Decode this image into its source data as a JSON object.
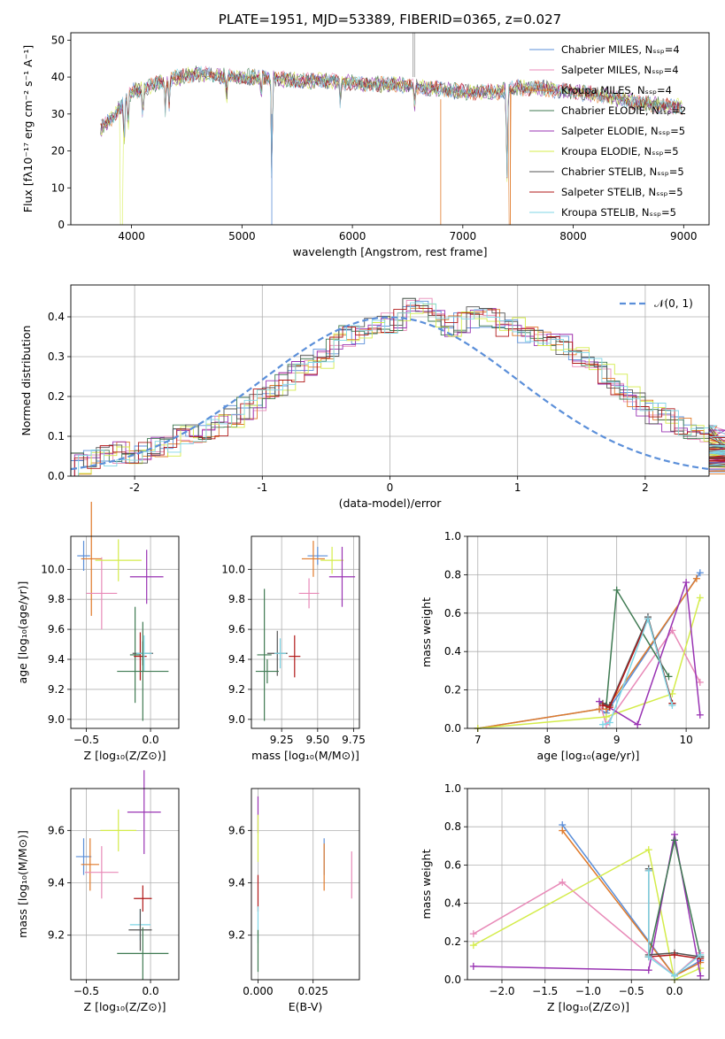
{
  "colors": {
    "chabrier_miles": "#5b8fd9",
    "salpeter_miles": "#e88ab8",
    "kroupa_miles": "#e07a2a",
    "chabrier_elodie": "#3f7a52",
    "salpeter_elodie": "#9933b3",
    "kroupa_elodie": "#d4ec4a",
    "chabrier_stelib": "#555555",
    "salpeter_stelib": "#b01818",
    "kroupa_stelib": "#7fd6e6",
    "gaussian": "#5b8fd9"
  },
  "chart_data": [
    {
      "id": "spectrum",
      "type": "line",
      "title": "PLATE=1951, MJD=53389, FIBERID=0365, z=0.027",
      "xlabel": "wavelength [Angstrom, rest frame]",
      "ylabel": "Flux [fλ10⁻¹⁷ erg cm⁻² s⁻¹ A⁻¹]",
      "xlim": [
        3450,
        9230
      ],
      "ylim": [
        0,
        52
      ],
      "xticks": [
        4000,
        5000,
        6000,
        7000,
        8000,
        9000
      ],
      "yticks": [
        0,
        10,
        20,
        30,
        40,
        50
      ],
      "legend_position": "top-right",
      "legend": [
        {
          "label": "Chabrier MILES, Nₛₛₚ=4",
          "color_key": "chabrier_miles"
        },
        {
          "label": "Salpeter MILES, Nₛₛₚ=4",
          "color_key": "salpeter_miles"
        },
        {
          "label": "Kroupa MILES, Nₛₛₚ=4",
          "color_key": "kroupa_miles"
        },
        {
          "label": "Chabrier ELODIE, Nₛₛₚ=2",
          "color_key": "chabrier_elodie"
        },
        {
          "label": "Salpeter ELODIE, Nₛₛₚ=5",
          "color_key": "salpeter_elodie"
        },
        {
          "label": "Kroupa ELODIE, Nₛₛₚ=5",
          "color_key": "kroupa_elodie"
        },
        {
          "label": "Chabrier STELIB, Nₛₛₚ=5",
          "color_key": "chabrier_stelib"
        },
        {
          "label": "Salpeter STELIB, Nₛₛₚ=5",
          "color_key": "salpeter_stelib"
        },
        {
          "label": "Kroupa STELIB, Nₛₛₚ=5",
          "color_key": "kroupa_stelib"
        }
      ],
      "continuum": [
        [
          3720,
          26
        ],
        [
          3850,
          30
        ],
        [
          4000,
          36
        ],
        [
          4300,
          39
        ],
        [
          4600,
          41
        ],
        [
          4900,
          40
        ],
        [
          5200,
          40
        ],
        [
          5500,
          39
        ],
        [
          5800,
          39
        ],
        [
          6100,
          38
        ],
        [
          6400,
          38
        ],
        [
          6700,
          37
        ],
        [
          7000,
          36
        ],
        [
          7300,
          36
        ],
        [
          7500,
          37
        ],
        [
          7700,
          37
        ],
        [
          8000,
          36
        ],
        [
          8300,
          35
        ],
        [
          8600,
          33
        ],
        [
          8900,
          32
        ],
        [
          8990,
          32
        ]
      ],
      "dips": [
        [
          3934,
          12
        ],
        [
          3969,
          10
        ],
        [
          4102,
          9
        ],
        [
          4305,
          8
        ],
        [
          4341,
          7
        ],
        [
          4861,
          6
        ],
        [
          5175,
          5
        ],
        [
          5270,
          30
        ],
        [
          5890,
          6
        ],
        [
          6563,
          5
        ],
        [
          7400,
          25
        ]
      ]
    },
    {
      "id": "residuals",
      "type": "histogram",
      "xlabel": "(data-model)/error",
      "ylabel": "Normed distribution",
      "xlim": [
        -2.5,
        2.5
      ],
      "ylim": [
        0,
        0.48
      ],
      "xticks": [
        -2,
        -1,
        0,
        1,
        2
      ],
      "yticks": [
        0.0,
        0.1,
        0.2,
        0.3,
        0.4
      ],
      "legend_position": "top-right",
      "legend_label": "𝒩(0, 1)",
      "bin_width": 0.1,
      "x_start": -2.5,
      "base_values": [
        0.03,
        0.04,
        0.05,
        0.06,
        0.05,
        0.06,
        0.07,
        0.08,
        0.1,
        0.11,
        0.12,
        0.13,
        0.15,
        0.17,
        0.19,
        0.21,
        0.23,
        0.26,
        0.28,
        0.3,
        0.33,
        0.35,
        0.36,
        0.37,
        0.38,
        0.39,
        0.42,
        0.43,
        0.4,
        0.38,
        0.39,
        0.4,
        0.4,
        0.38,
        0.37,
        0.36,
        0.35,
        0.34,
        0.33,
        0.3,
        0.28,
        0.26,
        0.23,
        0.2,
        0.18,
        0.16,
        0.14,
        0.13,
        0.12,
        0.11,
        0.1,
        0.09,
        0.08,
        0.07,
        0.06,
        0.05,
        0.05,
        0.04,
        0.04,
        0.03
      ]
    },
    {
      "id": "z-age",
      "type": "errorbar",
      "xlabel": "Z [log₁₀(Z/Z⊙)]",
      "ylabel": "age  [log₁₀(age/yr)]",
      "xlim": [
        -0.62,
        0.22
      ],
      "ylim": [
        8.94,
        10.22
      ],
      "xticks": [
        -0.5,
        0.0
      ],
      "xticklabels": [
        "−0.5",
        "0.0"
      ],
      "yticks": [
        9.0,
        9.2,
        9.4,
        9.6,
        9.8,
        10.0
      ],
      "points": [
        {
          "color_key": "chabrier_miles",
          "x": -0.52,
          "xerr": 0.05,
          "y": 10.09,
          "yerr": 0.1
        },
        {
          "color_key": "kroupa_miles",
          "x": -0.46,
          "xerr": 0.08,
          "y": 10.07,
          "yerr": 0.38
        },
        {
          "color_key": "salpeter_miles",
          "x": -0.38,
          "xerr": 0.12,
          "y": 9.84,
          "yerr": 0.24
        },
        {
          "color_key": "kroupa_elodie",
          "x": -0.25,
          "xerr": 0.18,
          "y": 10.06,
          "yerr": 0.14
        },
        {
          "color_key": "salpeter_elodie",
          "x": -0.03,
          "xerr": 0.13,
          "y": 9.95,
          "yerr": 0.18
        },
        {
          "color_key": "chabrier_elodie",
          "x": -0.12,
          "xerr": 0.04,
          "y": 9.43,
          "yerr": 0.32
        },
        {
          "color_key": "chabrier_stelib",
          "x": -0.06,
          "xerr": 0.08,
          "y": 9.44,
          "yerr": 0.08
        },
        {
          "color_key": "salpeter_stelib",
          "x": -0.08,
          "xerr": 0.05,
          "y": 9.42,
          "yerr": 0.16
        },
        {
          "color_key": "kroupa_stelib",
          "x": -0.05,
          "xerr": 0.06,
          "y": 9.44,
          "yerr": 0.12
        },
        {
          "color_key": "chabrier_elodie",
          "x": -0.06,
          "xerr": 0.2,
          "y": 9.32,
          "yerr": 0.33
        }
      ]
    },
    {
      "id": "mass-age",
      "type": "errorbar",
      "xlabel": "mass [log₁₀(M/M⊙)]",
      "ylabel": "",
      "xlim": [
        9.04,
        9.79
      ],
      "ylim": [
        8.94,
        10.22
      ],
      "xticks": [
        9.25,
        9.5,
        9.75
      ],
      "xticklabels": [
        "9.25",
        "9.50",
        "9.75"
      ],
      "yticks": [
        9.0,
        9.2,
        9.4,
        9.6,
        9.8,
        10.0
      ],
      "points": [
        {
          "color_key": "chabrier_miles",
          "x": 9.5,
          "xerr": 0.07,
          "y": 10.09,
          "yerr": 0.06
        },
        {
          "color_key": "kroupa_miles",
          "x": 9.47,
          "xerr": 0.08,
          "y": 10.07,
          "yerr": 0.12
        },
        {
          "color_key": "kroupa_elodie",
          "x": 9.6,
          "xerr": 0.08,
          "y": 10.06,
          "yerr": 0.09
        },
        {
          "color_key": "salpeter_elodie",
          "x": 9.67,
          "xerr": 0.09,
          "y": 9.95,
          "yerr": 0.2
        },
        {
          "color_key": "salpeter_miles",
          "x": 9.44,
          "xerr": 0.07,
          "y": 9.84,
          "yerr": 0.1
        },
        {
          "color_key": "chabrier_elodie",
          "x": 9.13,
          "xerr": 0.05,
          "y": 9.43,
          "yerr": 0.44
        },
        {
          "color_key": "chabrier_stelib",
          "x": 9.22,
          "xerr": 0.07,
          "y": 9.44,
          "yerr": 0.15
        },
        {
          "color_key": "salpeter_stelib",
          "x": 9.34,
          "xerr": 0.04,
          "y": 9.42,
          "yerr": 0.14
        },
        {
          "color_key": "kroupa_stelib",
          "x": 9.24,
          "xerr": 0.04,
          "y": 9.44,
          "yerr": 0.1
        },
        {
          "color_key": "chabrier_elodie",
          "x": 9.15,
          "xerr": 0.08,
          "y": 9.32,
          "yerr": 0.08
        }
      ]
    },
    {
      "id": "age-weight",
      "type": "line",
      "xlabel": "age  [log₁₀(age/yr)]",
      "ylabel": "mass weight",
      "xlim": [
        6.85,
        10.33
      ],
      "ylim": [
        0,
        1
      ],
      "xticks": [
        7,
        8,
        9,
        10
      ],
      "yticks": [
        0.0,
        0.2,
        0.4,
        0.6,
        0.8,
        1.0
      ],
      "series": [
        {
          "color_key": "chabrier_miles",
          "x": [
            7.0,
            8.75,
            8.85,
            10.2
          ],
          "y": [
            0.0,
            0.1,
            0.08,
            0.81
          ]
        },
        {
          "color_key": "kroupa_miles",
          "x": [
            7.0,
            8.75,
            8.85,
            10.15
          ],
          "y": [
            0.0,
            0.1,
            0.1,
            0.78
          ]
        },
        {
          "color_key": "salpeter_miles",
          "x": [
            8.75,
            8.85,
            9.8,
            10.2
          ],
          "y": [
            0.14,
            0.02,
            0.51,
            0.24
          ]
        },
        {
          "color_key": "kroupa_elodie",
          "x": [
            7.0,
            8.85,
            9.8,
            10.2
          ],
          "y": [
            0.0,
            0.06,
            0.18,
            0.68
          ]
        },
        {
          "color_key": "salpeter_elodie",
          "x": [
            8.75,
            9.3,
            10.0,
            10.2
          ],
          "y": [
            0.14,
            0.02,
            0.76,
            0.07
          ]
        },
        {
          "color_key": "chabrier_elodie",
          "x": [
            8.85,
            9.0,
            9.75
          ],
          "y": [
            0.12,
            0.72,
            0.27
          ]
        },
        {
          "color_key": "chabrier_stelib",
          "x": [
            8.8,
            8.9,
            9.45,
            9.8
          ],
          "y": [
            0.13,
            0.12,
            0.58,
            0.13
          ]
        },
        {
          "color_key": "salpeter_stelib",
          "x": [
            8.8,
            8.9,
            9.45,
            9.8
          ],
          "y": [
            0.12,
            0.11,
            0.57,
            0.13
          ]
        },
        {
          "color_key": "kroupa_stelib",
          "x": [
            8.8,
            8.9,
            9.45,
            9.8
          ],
          "y": [
            0.02,
            0.03,
            0.57,
            0.12
          ]
        }
      ]
    },
    {
      "id": "z-mass",
      "type": "errorbar",
      "xlabel": "Z [log₁₀(Z/Z⊙)]",
      "ylabel": "mass [log₁₀(M/M⊙)]",
      "xlim": [
        -0.62,
        0.22
      ],
      "ylim": [
        9.03,
        9.76
      ],
      "xticks": [
        -0.5,
        0.0
      ],
      "xticklabels": [
        "−0.5",
        "0.0"
      ],
      "yticks": [
        9.2,
        9.4,
        9.6
      ],
      "points": [
        {
          "color_key": "chabrier_miles",
          "x": -0.52,
          "xerr": 0.06,
          "y": 9.5,
          "yerr": 0.07
        },
        {
          "color_key": "kroupa_miles",
          "x": -0.47,
          "xerr": 0.07,
          "y": 9.47,
          "yerr": 0.1
        },
        {
          "color_key": "salpeter_miles",
          "x": -0.38,
          "xerr": 0.13,
          "y": 9.44,
          "yerr": 0.1
        },
        {
          "color_key": "kroupa_elodie",
          "x": -0.25,
          "xerr": 0.14,
          "y": 9.6,
          "yerr": 0.08
        },
        {
          "color_key": "salpeter_elodie",
          "x": -0.05,
          "xerr": 0.13,
          "y": 9.67,
          "yerr": 0.16
        },
        {
          "color_key": "salpeter_stelib",
          "x": -0.06,
          "xerr": 0.07,
          "y": 9.34,
          "yerr": 0.05
        },
        {
          "color_key": "kroupa_stelib",
          "x": -0.08,
          "xerr": 0.08,
          "y": 9.24,
          "yerr": 0.06
        },
        {
          "color_key": "chabrier_stelib",
          "x": -0.08,
          "xerr": 0.09,
          "y": 9.22,
          "yerr": 0.08
        },
        {
          "color_key": "chabrier_elodie",
          "x": -0.06,
          "xerr": 0.2,
          "y": 9.13,
          "yerr": 0.1
        }
      ]
    },
    {
      "id": "ebv-mass",
      "type": "errorbar",
      "xlabel": "E(B-V)",
      "ylabel": "",
      "xlim": [
        -0.003,
        0.046
      ],
      "ylim": [
        9.03,
        9.76
      ],
      "xticks": [
        0.0,
        0.025
      ],
      "xticklabels": [
        "0.000",
        "0.025"
      ],
      "yticks": [
        9.2,
        9.4,
        9.6
      ],
      "points": [
        {
          "color_key": "chabrier_miles",
          "x": 0.03,
          "xerr": 0,
          "y": 9.5,
          "yerr": 0.07
        },
        {
          "color_key": "kroupa_miles",
          "x": 0.03,
          "xerr": 0,
          "y": 9.46,
          "yerr": 0.09
        },
        {
          "color_key": "salpeter_miles",
          "x": 0.0425,
          "xerr": 0,
          "y": 9.43,
          "yerr": 0.09
        },
        {
          "color_key": "salpeter_elodie",
          "x": 0.0,
          "xerr": 0,
          "y": 9.66,
          "yerr": 0.07
        },
        {
          "color_key": "kroupa_elodie",
          "x": 0.0,
          "xerr": 0,
          "y": 9.57,
          "yerr": 0.09
        },
        {
          "color_key": "salpeter_stelib",
          "x": 0.0,
          "xerr": 0,
          "y": 9.36,
          "yerr": 0.07
        },
        {
          "color_key": "kroupa_stelib",
          "x": 0.0,
          "xerr": 0,
          "y": 9.24,
          "yerr": 0.07
        },
        {
          "color_key": "chabrier_elodie",
          "x": 0.0,
          "xerr": 0,
          "y": 9.14,
          "yerr": 0.08
        }
      ]
    },
    {
      "id": "z-weight",
      "type": "line",
      "xlabel": "Z [log₁₀(Z/Z⊙)]",
      "ylabel": "mass weight",
      "xlim": [
        -2.4,
        0.4
      ],
      "ylim": [
        0,
        1
      ],
      "xticks": [
        -2.0,
        -1.5,
        -1.0,
        -0.5,
        0.0
      ],
      "xticklabels": [
        "−2.0",
        "−1.5",
        "−1.0",
        "−0.5",
        "0.0"
      ],
      "yticks": [
        0.0,
        0.2,
        0.4,
        0.6,
        0.8,
        1.0
      ],
      "series": [
        {
          "color_key": "chabrier_miles",
          "x": [
            -1.3,
            0.0,
            0.3
          ],
          "y": [
            0.81,
            0.02,
            0.1
          ]
        },
        {
          "color_key": "kroupa_miles",
          "x": [
            -1.3,
            0.0,
            0.3
          ],
          "y": [
            0.78,
            0.02,
            0.09
          ]
        },
        {
          "color_key": "salpeter_miles",
          "x": [
            -2.33,
            -1.3,
            0.0,
            0.3
          ],
          "y": [
            0.24,
            0.51,
            0.02,
            0.14
          ]
        },
        {
          "color_key": "kroupa_elodie",
          "x": [
            -2.33,
            -0.3,
            0.0,
            0.3
          ],
          "y": [
            0.18,
            0.68,
            0.0,
            0.06
          ]
        },
        {
          "color_key": "salpeter_elodie",
          "x": [
            -2.33,
            -0.3,
            0.0,
            0.3
          ],
          "y": [
            0.07,
            0.05,
            0.76,
            0.02
          ]
        },
        {
          "color_key": "chabrier_elodie",
          "x": [
            -0.3,
            0.0,
            0.3
          ],
          "y": [
            0.12,
            0.73,
            0.12
          ]
        },
        {
          "color_key": "chabrier_stelib",
          "x": [
            -0.3,
            -0.3,
            0.0,
            0.3
          ],
          "y": [
            0.58,
            0.13,
            0.14,
            0.12
          ]
        },
        {
          "color_key": "salpeter_stelib",
          "x": [
            -0.3,
            -0.3,
            0.0,
            0.3
          ],
          "y": [
            0.57,
            0.12,
            0.13,
            0.11
          ]
        },
        {
          "color_key": "kroupa_stelib",
          "x": [
            -0.3,
            -0.3,
            0.0,
            0.3
          ],
          "y": [
            0.57,
            0.12,
            0.02,
            0.13
          ]
        }
      ]
    }
  ]
}
